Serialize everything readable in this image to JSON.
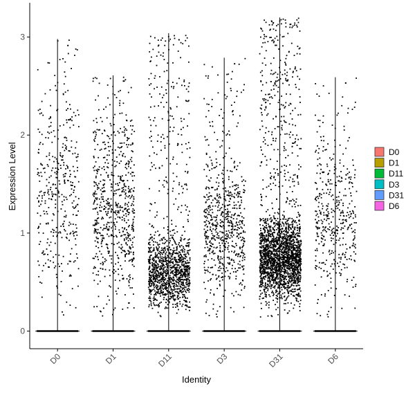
{
  "chart_data": {
    "type": "violin-jitter",
    "xlabel": "Identity",
    "ylabel": "Expression Level",
    "categories": [
      "D0",
      "D1",
      "D11",
      "D3",
      "D31",
      "D6"
    ],
    "ylim": [
      -0.18,
      3.35
    ],
    "yticks": [
      0,
      1,
      2,
      3
    ],
    "legend": {
      "position": "right",
      "entries": [
        "D0",
        "D1",
        "D11",
        "D3",
        "D31",
        "D6"
      ]
    },
    "colors": [
      "#F8766D",
      "#B79F00",
      "#00BA38",
      "#00BFC4",
      "#619CFF",
      "#F564E3"
    ],
    "series": [
      {
        "name": "D0",
        "max": 2.98,
        "points_shown": 400,
        "dense_range": [
          0.35,
          2.5
        ]
      },
      {
        "name": "D1",
        "max": 2.61,
        "points_shown": 700,
        "dense_range": [
          0.3,
          2.3
        ]
      },
      {
        "name": "D11",
        "max": 3.04,
        "points_shown": 1300,
        "dense_range": [
          0.2,
          1.0
        ]
      },
      {
        "name": "D3",
        "max": 2.79,
        "points_shown": 700,
        "dense_range": [
          0.3,
          1.8
        ]
      },
      {
        "name": "D31",
        "max": 3.2,
        "points_shown": 2300,
        "dense_range": [
          0.3,
          1.2
        ]
      },
      {
        "name": "D6",
        "max": 2.59,
        "points_shown": 450,
        "dense_range": [
          0.3,
          2.0
        ]
      }
    ],
    "grid": false
  }
}
